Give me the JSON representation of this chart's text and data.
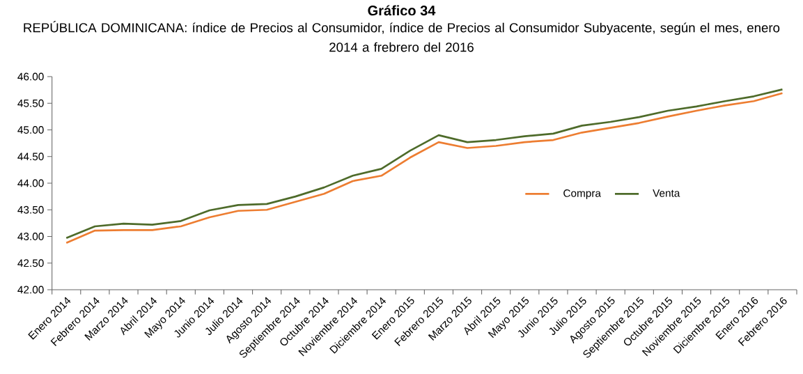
{
  "chart_data": {
    "type": "line",
    "title": "Gráfico 34",
    "subtitle": "REPÚBLICA DOMINICANA: índice de Precios al Consumidor, índice de Precios al Consumidor Subyacente, según el mes, enero 2014 a frebrero del 2016",
    "categories": [
      "Enero 2014",
      "Febrero 2014",
      "Marzo 2014",
      "Abril 2014",
      "Mayo 2014",
      "Junio 2014",
      "Julio 2014",
      "Agosto 2014",
      "Septiembre 2014",
      "Octubre 2014",
      "Noviembre 2014",
      "Diciembre 2014",
      "Enero 2015",
      "Febrero 2015",
      "Marzo 2015",
      "Abril 2015",
      "Mayo 2015",
      "Junio 2015",
      "Julio 2015",
      "Agosto 2015",
      "Septiembre 2015",
      "Octubre 2015",
      "Noviembre 2015",
      "Diciembre 2015",
      "Enero 2016",
      "Febrero 2016"
    ],
    "series": [
      {
        "name": "Compra",
        "color": "#ed7d31",
        "values": [
          42.88,
          43.11,
          43.12,
          43.12,
          43.19,
          43.36,
          43.48,
          43.5,
          43.65,
          43.8,
          44.04,
          44.14,
          44.48,
          44.77,
          44.66,
          44.7,
          44.77,
          44.81,
          44.95,
          45.04,
          45.13,
          45.25,
          45.36,
          45.46,
          45.54,
          45.69
        ]
      },
      {
        "name": "Venta",
        "color": "#4e6b2a",
        "values": [
          42.97,
          43.19,
          43.24,
          43.22,
          43.29,
          43.49,
          43.59,
          43.61,
          43.75,
          43.92,
          44.14,
          44.27,
          44.61,
          44.9,
          44.77,
          44.81,
          44.88,
          44.93,
          45.08,
          45.15,
          45.24,
          45.36,
          45.44,
          45.54,
          45.63,
          45.76
        ]
      }
    ],
    "ylim": [
      42,
      46
    ],
    "yticks": [
      {
        "value": 42,
        "label": "42.00"
      },
      {
        "value": 42.5,
        "label": "42.50"
      },
      {
        "value": 43,
        "label": "43.00"
      },
      {
        "value": 43.5,
        "label": "43.50"
      },
      {
        "value": 44,
        "label": "44.00"
      },
      {
        "value": 44.5,
        "label": "44.50"
      },
      {
        "value": 45,
        "label": "45.00"
      },
      {
        "value": 45.5,
        "label": "45.50"
      },
      {
        "value": 46,
        "label": "46.00"
      }
    ],
    "legend": "right",
    "grid": false,
    "marker": "none",
    "line_style": "solid"
  }
}
